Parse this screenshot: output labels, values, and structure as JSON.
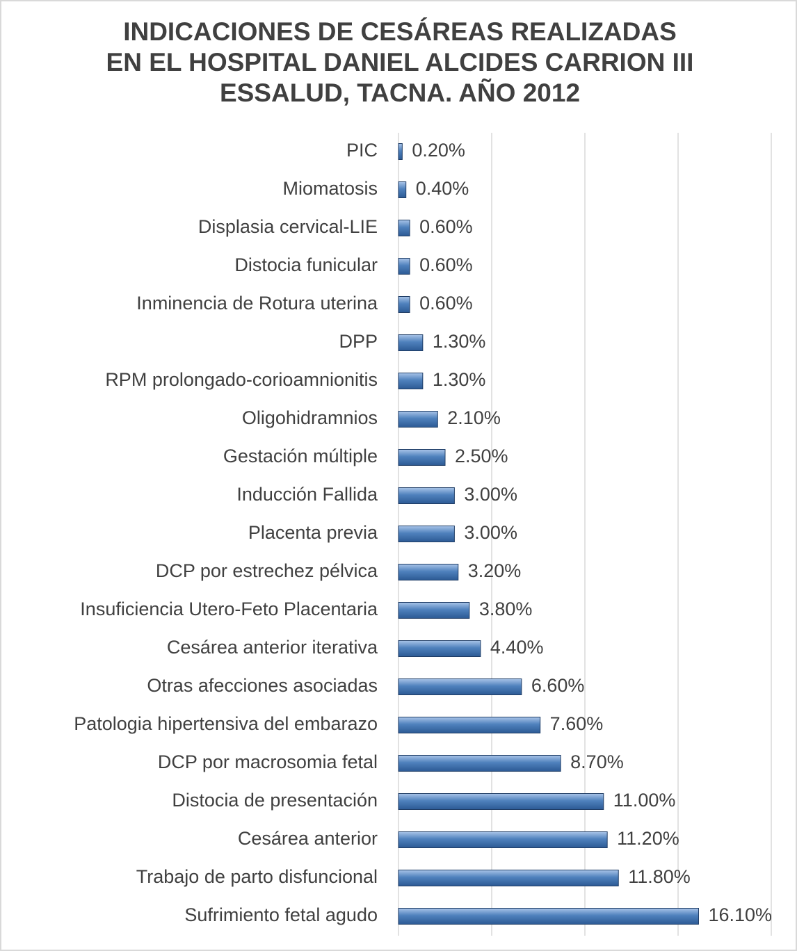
{
  "chart_data": {
    "type": "bar",
    "orientation": "horizontal",
    "title": [
      "INDICACIONES DE CESÁREAS  REALIZADAS",
      "EN EL HOSPITAL DANIEL ALCIDES CARRION III",
      "ESSALUD, TACNA. AÑO 2012"
    ],
    "categories": [
      "PIC",
      "Miomatosis",
      "Displasia cervical-LIE",
      "Distocia funicular",
      "Inminencia de Rotura uterina",
      "DPP",
      "RPM prolongado-corioamnionitis",
      "Oligohidramnios",
      "Gestación múltiple",
      "Inducción Fallida",
      "Placenta previa",
      "DCP por estrechez pélvica",
      "Insuficiencia Utero-Feto Placentaria",
      "Cesárea anterior iterativa",
      "Otras afecciones asociadas",
      "Patologia hipertensiva del embarazo",
      "DCP por macrosomia fetal",
      "Distocia de presentación",
      "Cesárea anterior",
      "Trabajo de parto disfuncional",
      "Sufrimiento fetal agudo"
    ],
    "values": [
      0.2,
      0.4,
      0.6,
      0.6,
      0.6,
      1.3,
      1.3,
      2.1,
      2.5,
      3.0,
      3.0,
      3.2,
      3.8,
      4.4,
      6.6,
      7.6,
      8.7,
      11.0,
      11.2,
      11.8,
      16.1
    ],
    "value_labels": [
      "0.20%",
      "0.40%",
      "0.60%",
      "0.60%",
      "0.60%",
      "1.30%",
      "1.30%",
      "2.10%",
      "2.50%",
      "3.00%",
      "3.00%",
      "3.20%",
      "3.80%",
      "4.40%",
      "6.60%",
      "7.60%",
      "8.70%",
      "11.00%",
      "11.20%",
      "11.80%",
      "16.10%"
    ],
    "color": "#4f81bd",
    "xlim": [
      0,
      20
    ],
    "xticks": [
      0,
      5,
      10,
      15,
      20
    ],
    "grid": true
  }
}
